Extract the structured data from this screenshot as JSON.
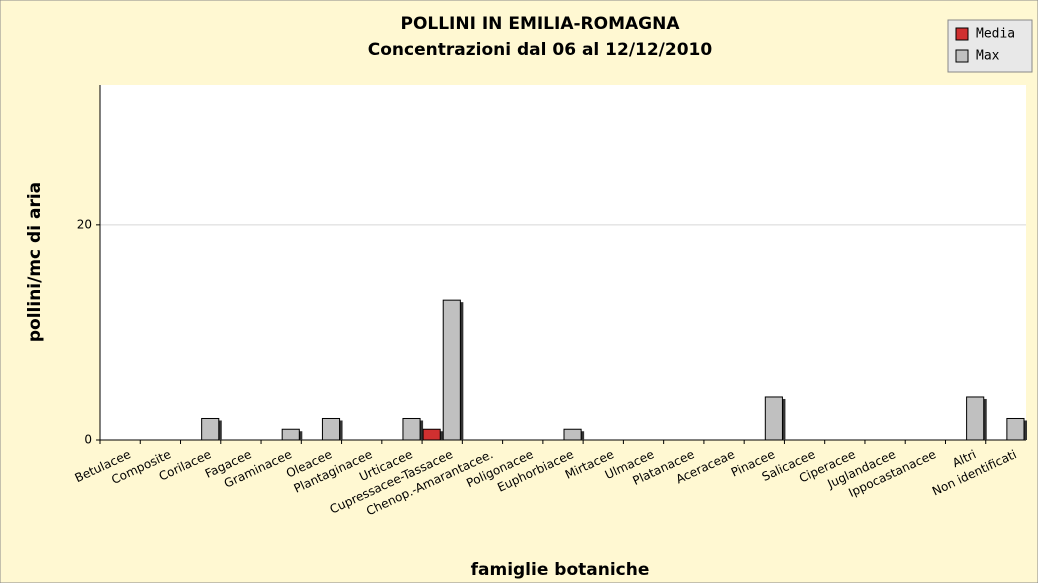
{
  "chart_data": {
    "type": "bar",
    "title": "POLLINI IN EMILIA-ROMAGNA",
    "subtitle": "Concentrazioni dal 06 al 12/12/2010",
    "x_label": "famiglie botaniche",
    "y_label": "pollini/mc di aria",
    "categories": [
      "Betulacee",
      "Composite",
      "Corilacee",
      "Fagacee",
      "Graminacee",
      "Oleacee",
      "Plantaginacee",
      "Urticacee",
      "Cupressacee-Tassacee",
      "Chenop.-Amarantacee.",
      "Poligonacee",
      "Euphorbiacee",
      "Mirtacee",
      "Ulmacee",
      "Platanacee",
      "Aceraceae",
      "Pinacee",
      "Salicacee",
      "Ciperacee",
      "Juglandacee",
      "Ippocastanacee",
      "Altri",
      "Non identificati"
    ],
    "series": [
      {
        "name": "Media",
        "color": "#d03030",
        "values": [
          0,
          0,
          0,
          0,
          0,
          0,
          0,
          0,
          1,
          0,
          0,
          0,
          0,
          0,
          0,
          0,
          0,
          0,
          0,
          0,
          0,
          0,
          0
        ]
      },
      {
        "name": "Max",
        "color": "#c0c0c0",
        "values": [
          0,
          0,
          2,
          0,
          1,
          2,
          0,
          2,
          13,
          0,
          0,
          1,
          0,
          0,
          0,
          0,
          4,
          0,
          0,
          0,
          0,
          4,
          2
        ]
      }
    ],
    "ylim": [
      0,
      33
    ],
    "yticks": [
      0,
      20
    ],
    "grid": true,
    "legend": "top-right"
  }
}
